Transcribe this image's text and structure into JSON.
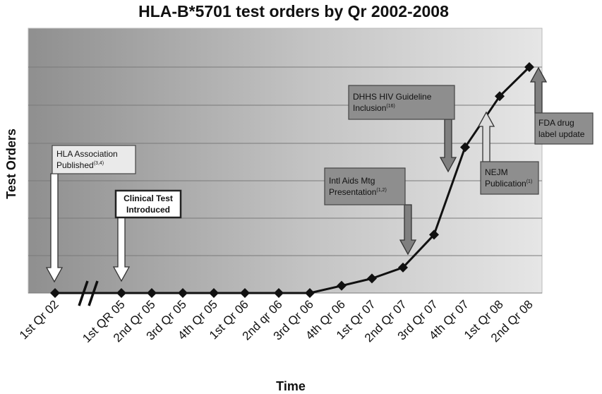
{
  "chart_data": {
    "type": "line",
    "title": "HLA-B*5701 test orders by Qr 2002-2008",
    "xlabel": "Time",
    "ylabel": "Test Orders",
    "categories": [
      "1st Qr 02",
      "1st QR 05",
      "2nd Qr 05",
      "3rd Qr 05",
      "4th Qr 05",
      "1st Qr 06",
      "2nd qr 06",
      "3rd Qr 06",
      "4th Qr 06",
      "1st Qr 07",
      "2nd Qr 07",
      "3rd Qr 07",
      "4th Qr 07",
      "1st Qr 08",
      "2nd Qr 08"
    ],
    "series": [
      {
        "name": "",
        "values": [
          0,
          0,
          0,
          0,
          0,
          0,
          0,
          0,
          0.2,
          0.4,
          0.7,
          1.6,
          4.0,
          5.4,
          6.2
        ]
      }
    ],
    "ylim": [
      0,
      6.25
    ],
    "grid": true,
    "axis_break_after": "1st Qr 02",
    "annotations": [
      {
        "id": "hla",
        "lines": [
          "HLA Association",
          "Published"
        ],
        "sup": "(3,4)",
        "style": "light",
        "arrow": "white",
        "target": "1st Qr 02"
      },
      {
        "id": "clinical",
        "lines": [
          "Clinical Test",
          "Introduced"
        ],
        "sup": "",
        "style": "dark-outline",
        "arrow": "white",
        "target": "1st QR 05"
      },
      {
        "id": "intl",
        "lines": [
          "Intl Aids Mtg",
          "Presentation"
        ],
        "sup": "(1,2)",
        "style": "gray",
        "arrow": "gray",
        "target": "2nd Qr 07"
      },
      {
        "id": "dhhs",
        "lines": [
          "DHHS HIV Guideline",
          "Inclusion"
        ],
        "sup": "(16)",
        "style": "gray",
        "arrow": "gray",
        "target": "3rd Qr 07"
      },
      {
        "id": "nejm",
        "lines": [
          "NEJM",
          "Publication"
        ],
        "sup": "(1)",
        "style": "gray",
        "arrow": "light",
        "target": "4th Qr 07"
      },
      {
        "id": "fda",
        "lines": [
          "FDA drug",
          "label update"
        ],
        "sup": "",
        "style": "gray",
        "arrow": "gray",
        "target": "2nd Qr 08"
      }
    ]
  }
}
